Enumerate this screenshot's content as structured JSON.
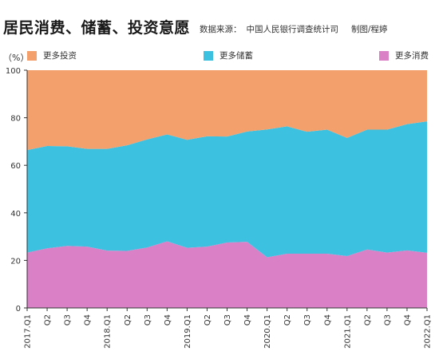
{
  "header": {
    "title": "居民消费、储蓄、投资意愿",
    "source_label": "数据来源：",
    "source_value": "中国人民银行调查统计司",
    "author": "制图/程婷",
    "unit": "（%）"
  },
  "colors": {
    "investment": "#F4A06C",
    "saving": "#3DC1E1",
    "consumption": "#DA80C6",
    "axis": "#333333"
  },
  "chart_data": {
    "type": "area",
    "stacked": true,
    "x": [
      "2017.Q1",
      "Q2",
      "Q3",
      "Q4",
      "2018.Q1",
      "Q2",
      "Q3",
      "Q4",
      "2019.Q1",
      "Q2",
      "Q3",
      "Q4",
      "2020.Q1",
      "Q2",
      "Q3",
      "Q4",
      "2021.Q1",
      "Q2",
      "Q3",
      "Q4",
      "2022.Q1"
    ],
    "series": [
      {
        "name": "更多消费",
        "key": "consumption",
        "values": [
          23.3,
          25.1,
          26.1,
          25.8,
          24.1,
          24.0,
          25.4,
          28.0,
          25.3,
          25.8,
          27.5,
          27.8,
          21.3,
          22.8,
          22.8,
          22.8,
          21.8,
          24.6,
          23.3,
          24.2,
          23.2
        ]
      },
      {
        "name": "更多储蓄",
        "key": "saving",
        "values": [
          43.1,
          43.0,
          41.9,
          41.1,
          42.8,
          44.4,
          45.5,
          45.0,
          45.4,
          46.4,
          44.6,
          46.4,
          53.8,
          53.6,
          51.3,
          52.2,
          49.7,
          50.4,
          51.7,
          53.1,
          55.3
        ]
      },
      {
        "name": "更多投资",
        "key": "investment",
        "values": [
          33.6,
          31.9,
          32.0,
          33.1,
          33.1,
          31.6,
          29.1,
          27.0,
          29.3,
          27.8,
          27.9,
          25.8,
          24.9,
          23.6,
          25.9,
          25.0,
          28.5,
          25.0,
          25.0,
          22.7,
          21.5
        ]
      }
    ],
    "legend_order": [
      "更多投资",
      "更多储蓄",
      "更多消费"
    ],
    "ylim": [
      0,
      100
    ],
    "yticks": [
      0,
      20,
      40,
      60,
      80,
      100
    ],
    "grid": false,
    "legend_position": "top"
  }
}
